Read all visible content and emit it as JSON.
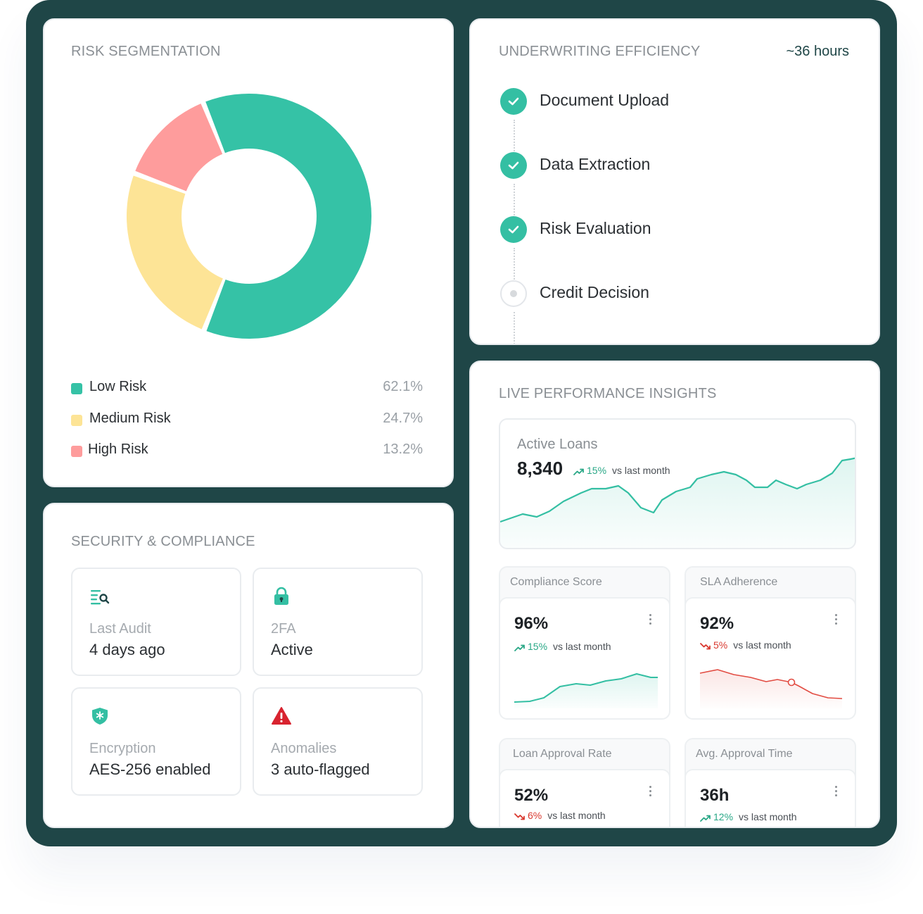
{
  "risk_segmentation": {
    "title": "RISK SEGMENTATION",
    "chart_data": {
      "type": "pie",
      "categories": [
        "Low Risk",
        "Medium Risk",
        "High Risk"
      ],
      "values": [
        62.1,
        24.7,
        13.2
      ],
      "value_labels": [
        "62.1%",
        "24.7%",
        "13.2%"
      ],
      "colors": [
        "#35c2a6",
        "#fde496",
        "#fe9c9c"
      ],
      "legend": "bottom"
    }
  },
  "underwriting": {
    "title": "UNDERWRITING EFFICIENCY",
    "duration": "~36 hours",
    "steps": [
      {
        "label": "Document Upload",
        "status": "complete"
      },
      {
        "label": "Data Extraction",
        "status": "complete"
      },
      {
        "label": "Risk Evaluation",
        "status": "complete"
      },
      {
        "label": "Credit Decision",
        "status": "pending"
      }
    ]
  },
  "security": {
    "title": "SECURITY & COMPLIANCE",
    "tiles": [
      {
        "label": "Last Audit",
        "value": "4 days ago",
        "icon": "audit-search-icon"
      },
      {
        "label": "2FA",
        "value": "Active",
        "icon": "lock-icon"
      },
      {
        "label": "Encryption",
        "value": "AES-256 enabled",
        "icon": "shield-icon"
      },
      {
        "label": "Anomalies",
        "value": "3 auto-flagged",
        "icon": "warning-icon"
      }
    ]
  },
  "live": {
    "title": "LIVE PERFORMANCE INSIGHTS",
    "active_loans": {
      "label": "Active Loans",
      "value": "8,340",
      "change": "15%",
      "direction": "up",
      "vs": "vs last month"
    },
    "metrics": [
      {
        "label": "Compliance Score",
        "value": "96%",
        "change": "15%",
        "direction": "up",
        "vs": "vs last month"
      },
      {
        "label": "SLA Adherence",
        "value": "92%",
        "change": "5%",
        "direction": "down",
        "vs": "vs last month"
      },
      {
        "label": "Loan Approval Rate",
        "value": "52%",
        "change": "6%",
        "direction": "down",
        "vs": "vs last month"
      },
      {
        "label": "Avg. Approval Time",
        "value": "36h",
        "change": "12%",
        "direction": "up",
        "vs": "vs last month"
      }
    ],
    "colors": {
      "up": "#2aa887",
      "down": "#d9392f",
      "accent": "#34bfa3"
    }
  }
}
